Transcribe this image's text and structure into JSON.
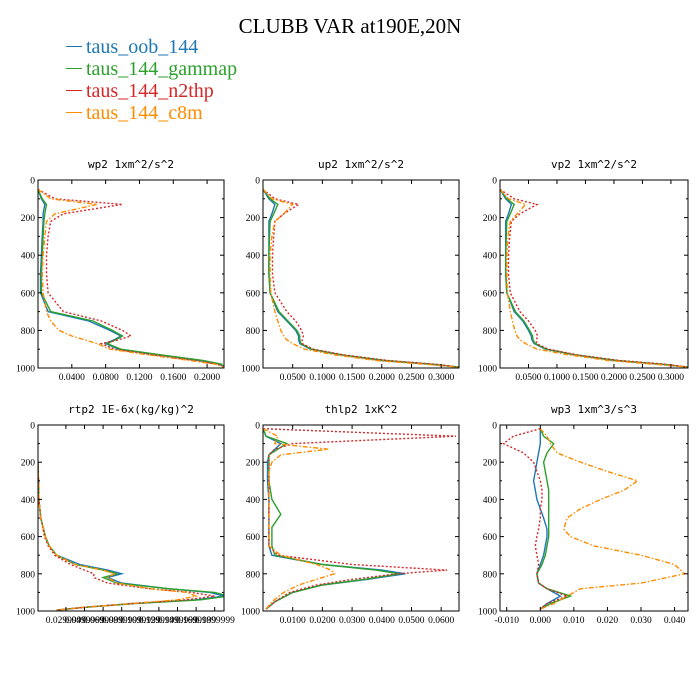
{
  "title": "CLUBB VAR at190E,20N",
  "legend": [
    {
      "label": "taus_oob_144",
      "color": "#1f77b4"
    },
    {
      "label": "taus_144_gammap",
      "color": "#2ca02c"
    },
    {
      "label": "taus_144_n2thp",
      "color": "#d62728"
    },
    {
      "label": "taus_144_c8m",
      "color": "#ff8c00"
    }
  ],
  "chart_data": [
    {
      "type": "line",
      "title": "wp2 1xm^2/s^2",
      "xlim": [
        0,
        0.22
      ],
      "ylim": [
        0,
        1000
      ],
      "xticks": [
        0.04,
        0.08,
        0.12,
        0.16,
        0.2
      ],
      "xtick_labels": [
        "0.0400",
        "0.0800",
        "0.1200",
        "0.1600",
        "0.2000"
      ],
      "yticks": [
        0,
        200,
        400,
        600,
        800,
        1000
      ],
      "ytick_labels": [
        "0",
        "200",
        "400",
        "600",
        "800",
        "1000"
      ],
      "y": [
        50,
        100,
        130,
        180,
        220,
        300,
        400,
        500,
        600,
        700,
        750,
        800,
        830,
        850,
        870,
        900,
        930,
        960,
        980,
        995
      ],
      "series": [
        {
          "name": "taus_oob_144",
          "x": [
            0,
            0.004,
            0.008,
            0.006,
            0.006,
            0.005,
            0.004,
            0.003,
            0.003,
            0.012,
            0.06,
            0.085,
            0.098,
            0.09,
            0.08,
            0.095,
            0.14,
            0.19,
            0.215,
            0.22
          ]
        },
        {
          "name": "taus_144_gammap",
          "x": [
            0,
            0.005,
            0.01,
            0.008,
            0.007,
            0.006,
            0.005,
            0.004,
            0.004,
            0.015,
            0.065,
            0.088,
            0.1,
            0.092,
            0.082,
            0.098,
            0.145,
            0.195,
            0.217,
            0.22
          ]
        },
        {
          "name": "taus_144_n2thp",
          "x": [
            0,
            0.02,
            0.1,
            0.03,
            0.015,
            0.012,
            0.01,
            0.01,
            0.012,
            0.03,
            0.075,
            0.1,
            0.11,
            0.095,
            0.075,
            0.09,
            0.135,
            0.185,
            0.212,
            0.22
          ]
        },
        {
          "name": "taus_144_c8m",
          "x": [
            0,
            0.015,
            0.07,
            0.02,
            0.01,
            0.008,
            0.006,
            0.005,
            0.006,
            0.01,
            0.015,
            0.025,
            0.04,
            0.055,
            0.07,
            0.085,
            0.13,
            0.18,
            0.21,
            0.22
          ]
        }
      ]
    },
    {
      "type": "line",
      "title": "up2 1xm^2/s^2",
      "xlim": [
        0,
        0.33
      ],
      "ylim": [
        0,
        1000
      ],
      "xticks": [
        0.05,
        0.1,
        0.15,
        0.2,
        0.25,
        0.3
      ],
      "xtick_labels": [
        "0.0500",
        "0.1000",
        "0.1500",
        "0.2000",
        "0.2500",
        "0.3000"
      ],
      "yticks": [
        0,
        200,
        400,
        600,
        800,
        1000
      ],
      "ytick_labels": [
        "0",
        "200",
        "400",
        "600",
        "800",
        "1000"
      ],
      "y": [
        50,
        100,
        130,
        180,
        220,
        300,
        400,
        500,
        600,
        700,
        750,
        800,
        830,
        850,
        870,
        900,
        930,
        960,
        980,
        995
      ],
      "series": [
        {
          "name": "taus_oob_144",
          "x": [
            0,
            0.01,
            0.02,
            0.015,
            0.01,
            0.01,
            0.01,
            0.01,
            0.012,
            0.025,
            0.04,
            0.055,
            0.06,
            0.06,
            0.062,
            0.08,
            0.13,
            0.2,
            0.28,
            0.33
          ]
        },
        {
          "name": "taus_144_gammap",
          "x": [
            0,
            0.012,
            0.025,
            0.018,
            0.012,
            0.011,
            0.01,
            0.01,
            0.012,
            0.027,
            0.042,
            0.057,
            0.062,
            0.062,
            0.064,
            0.082,
            0.132,
            0.205,
            0.285,
            0.33
          ]
        },
        {
          "name": "taus_144_n2thp",
          "x": [
            0,
            0.02,
            0.06,
            0.035,
            0.02,
            0.018,
            0.016,
            0.016,
            0.02,
            0.04,
            0.055,
            0.065,
            0.068,
            0.066,
            0.066,
            0.085,
            0.135,
            0.21,
            0.29,
            0.33
          ]
        },
        {
          "name": "taus_144_c8m",
          "x": [
            0,
            0.015,
            0.05,
            0.035,
            0.02,
            0.015,
            0.012,
            0.012,
            0.013,
            0.02,
            0.025,
            0.03,
            0.035,
            0.04,
            0.05,
            0.07,
            0.12,
            0.19,
            0.27,
            0.33
          ]
        }
      ]
    },
    {
      "type": "line",
      "title": "vp2 1xm^2/s^2",
      "xlim": [
        0,
        0.33
      ],
      "ylim": [
        0,
        1000
      ],
      "xticks": [
        0.05,
        0.1,
        0.15,
        0.2,
        0.25,
        0.3
      ],
      "xtick_labels": [
        "0.0500",
        "0.1000",
        "0.1500",
        "0.2000",
        "0.2500",
        "0.3000"
      ],
      "yticks": [
        0,
        200,
        400,
        600,
        800,
        1000
      ],
      "ytick_labels": [
        "0",
        "200",
        "400",
        "600",
        "800",
        "1000"
      ],
      "y": [
        50,
        100,
        130,
        180,
        220,
        300,
        400,
        500,
        600,
        700,
        750,
        800,
        830,
        850,
        870,
        900,
        930,
        960,
        980,
        995
      ],
      "series": [
        {
          "name": "taus_oob_144",
          "x": [
            0,
            0.01,
            0.02,
            0.015,
            0.01,
            0.01,
            0.01,
            0.01,
            0.012,
            0.025,
            0.04,
            0.05,
            0.055,
            0.056,
            0.06,
            0.08,
            0.13,
            0.2,
            0.28,
            0.33
          ]
        },
        {
          "name": "taus_144_gammap",
          "x": [
            0,
            0.012,
            0.025,
            0.018,
            0.012,
            0.011,
            0.01,
            0.01,
            0.012,
            0.027,
            0.042,
            0.052,
            0.057,
            0.058,
            0.062,
            0.082,
            0.132,
            0.205,
            0.285,
            0.33
          ]
        },
        {
          "name": "taus_144_n2thp",
          "x": [
            0,
            0.025,
            0.065,
            0.035,
            0.02,
            0.017,
            0.015,
            0.015,
            0.018,
            0.035,
            0.05,
            0.062,
            0.066,
            0.064,
            0.064,
            0.085,
            0.135,
            0.21,
            0.29,
            0.33
          ]
        },
        {
          "name": "taus_144_c8m",
          "x": [
            0,
            0.015,
            0.045,
            0.03,
            0.018,
            0.014,
            0.012,
            0.012,
            0.013,
            0.018,
            0.022,
            0.026,
            0.03,
            0.035,
            0.045,
            0.065,
            0.12,
            0.19,
            0.27,
            0.33
          ]
        }
      ]
    },
    {
      "type": "line",
      "title": "rtp2 1E-6x(kg/kg)^2",
      "xlim": [
        0,
        0.2
      ],
      "ylim": [
        0,
        1000
      ],
      "xticks": [
        0.03,
        0.05,
        0.07,
        0.09,
        0.11,
        0.13,
        0.15,
        0.17,
        0.19
      ],
      "xtick_labels": [
        "0.0299999",
        "0.0499999",
        "0.0699999",
        "0.0899999",
        "0.1099999",
        "0.1299999",
        "0.1499999",
        "0.1699999",
        "0.1899999"
      ],
      "yticks": [
        0,
        200,
        400,
        600,
        800,
        1000
      ],
      "ytick_labels": [
        "0",
        "200",
        "400",
        "600",
        "800",
        "1000"
      ],
      "y": [
        200,
        400,
        500,
        600,
        650,
        700,
        750,
        780,
        800,
        820,
        850,
        880,
        900,
        920,
        940,
        960,
        980,
        995
      ],
      "series": [
        {
          "name": "taus_oob_144",
          "x": [
            0,
            0.001,
            0.003,
            0.008,
            0.012,
            0.02,
            0.045,
            0.075,
            0.09,
            0.075,
            0.09,
            0.14,
            0.185,
            0.2,
            0.17,
            0.1,
            0.05,
            0.02
          ]
        },
        {
          "name": "taus_144_gammap",
          "x": [
            0,
            0.001,
            0.003,
            0.008,
            0.012,
            0.02,
            0.04,
            0.07,
            0.085,
            0.07,
            0.085,
            0.14,
            0.19,
            0.205,
            0.175,
            0.105,
            0.05,
            0.02
          ]
        },
        {
          "name": "taus_144_n2thp",
          "x": [
            0,
            0.001,
            0.003,
            0.007,
            0.011,
            0.018,
            0.035,
            0.05,
            0.06,
            0.06,
            0.075,
            0.12,
            0.165,
            0.19,
            0.16,
            0.1,
            0.05,
            0.02
          ]
        },
        {
          "name": "taus_144_c8m",
          "x": [
            0,
            0.001,
            0.003,
            0.008,
            0.012,
            0.02,
            0.04,
            0.07,
            0.082,
            0.075,
            0.085,
            0.12,
            0.16,
            0.17,
            0.15,
            0.1,
            0.05,
            0.02
          ]
        }
      ]
    },
    {
      "type": "line",
      "title": "thlp2 1xK^2",
      "xlim": [
        0,
        0.066
      ],
      "ylim": [
        0,
        1000
      ],
      "xticks": [
        0.01,
        0.02,
        0.03,
        0.04,
        0.05,
        0.06
      ],
      "xtick_labels": [
        "0.0100",
        "0.0200",
        "0.0300",
        "0.0400",
        "0.0500",
        "0.0600"
      ],
      "yticks": [
        0,
        200,
        400,
        600,
        800,
        1000
      ],
      "ytick_labels": [
        "0",
        "200",
        "400",
        "600",
        "800",
        "1000"
      ],
      "y": [
        20,
        60,
        100,
        130,
        160,
        200,
        250,
        300,
        400,
        480,
        550,
        650,
        700,
        750,
        780,
        800,
        830,
        860,
        900,
        950,
        990
      ],
      "series": [
        {
          "name": "taus_oob_144",
          "x": [
            0,
            0.001,
            0.006,
            0.004,
            0.002,
            0.0015,
            0.0015,
            0.0015,
            0.002,
            0.002,
            0.002,
            0.002,
            0.003,
            0.02,
            0.04,
            0.048,
            0.035,
            0.02,
            0.01,
            0.004,
            0.001
          ]
        },
        {
          "name": "taus_144_gammap",
          "x": [
            0,
            0.001,
            0.008,
            0.005,
            0.002,
            0.002,
            0.002,
            0.002,
            0.003,
            0.006,
            0.003,
            0.003,
            0.004,
            0.02,
            0.038,
            0.046,
            0.034,
            0.02,
            0.01,
            0.004,
            0.001
          ]
        },
        {
          "name": "taus_144_n2thp",
          "x": [
            0,
            0.065,
            0.01,
            0.004,
            0.002,
            0.002,
            0.002,
            0.002,
            0.002,
            0.002,
            0.002,
            0.002,
            0.005,
            0.03,
            0.062,
            0.045,
            0.03,
            0.018,
            0.009,
            0.004,
            0.001
          ]
        },
        {
          "name": "taus_144_c8m",
          "x": [
            0,
            0.005,
            0.004,
            0.022,
            0.006,
            0.003,
            0.002,
            0.002,
            0.002,
            0.002,
            0.002,
            0.002,
            0.006,
            0.018,
            0.023,
            0.024,
            0.018,
            0.012,
            0.007,
            0.003,
            0.001
          ]
        }
      ]
    },
    {
      "type": "line",
      "title": "wp3 1xm^3/s^3",
      "xlim": [
        -0.012,
        0.044
      ],
      "ylim": [
        0,
        1000
      ],
      "xticks": [
        -0.01,
        0.0,
        0.01,
        0.02,
        0.03,
        0.04
      ],
      "xtick_labels": [
        "-0.010",
        "0.000",
        "0.010",
        "0.020",
        "0.030",
        "0.040"
      ],
      "yticks": [
        0,
        200,
        400,
        600,
        800,
        1000
      ],
      "ytick_labels": [
        "0",
        "200",
        "400",
        "600",
        "800",
        "1000"
      ],
      "y": [
        20,
        60,
        100,
        150,
        200,
        250,
        300,
        350,
        400,
        450,
        500,
        560,
        600,
        650,
        700,
        750,
        800,
        850,
        880,
        920,
        960,
        990
      ],
      "series": [
        {
          "name": "taus_oob_144",
          "x": [
            0,
            0,
            0,
            -0.0005,
            -0.001,
            -0.0015,
            -0.002,
            -0.0015,
            -0.001,
            0,
            0.001,
            0.002,
            0.002,
            0.0015,
            0.001,
            0,
            -0.001,
            -0.0005,
            0.002,
            0.006,
            0.002,
            0
          ]
        },
        {
          "name": "taus_144_gammap",
          "x": [
            0,
            0.001,
            0.004,
            0.002,
            0.001,
            0.0015,
            0.002,
            0.0025,
            0.0025,
            0.0025,
            0.0025,
            0.0025,
            0.0025,
            0.002,
            0.0015,
            0.0005,
            -0.001,
            -0.0005,
            0.002,
            0.009,
            0.003,
            0
          ]
        },
        {
          "name": "taus_144_n2thp",
          "x": [
            0,
            -0.008,
            -0.011,
            -0.005,
            -0.002,
            -0.001,
            0,
            0.0005,
            0.0005,
            0,
            0,
            -0.0005,
            -0.001,
            -0.0015,
            -0.001,
            -0.0005,
            -0.001,
            -0.0005,
            0.002,
            0.008,
            0.002,
            0
          ]
        },
        {
          "name": "taus_144_c8m",
          "x": [
            0,
            0.002,
            0.003,
            0.005,
            0.012,
            0.02,
            0.029,
            0.025,
            0.018,
            0.012,
            0.008,
            0.007,
            0.009,
            0.016,
            0.03,
            0.04,
            0.043,
            0.03,
            0.012,
            0.008,
            0.004,
            0
          ]
        }
      ]
    }
  ]
}
